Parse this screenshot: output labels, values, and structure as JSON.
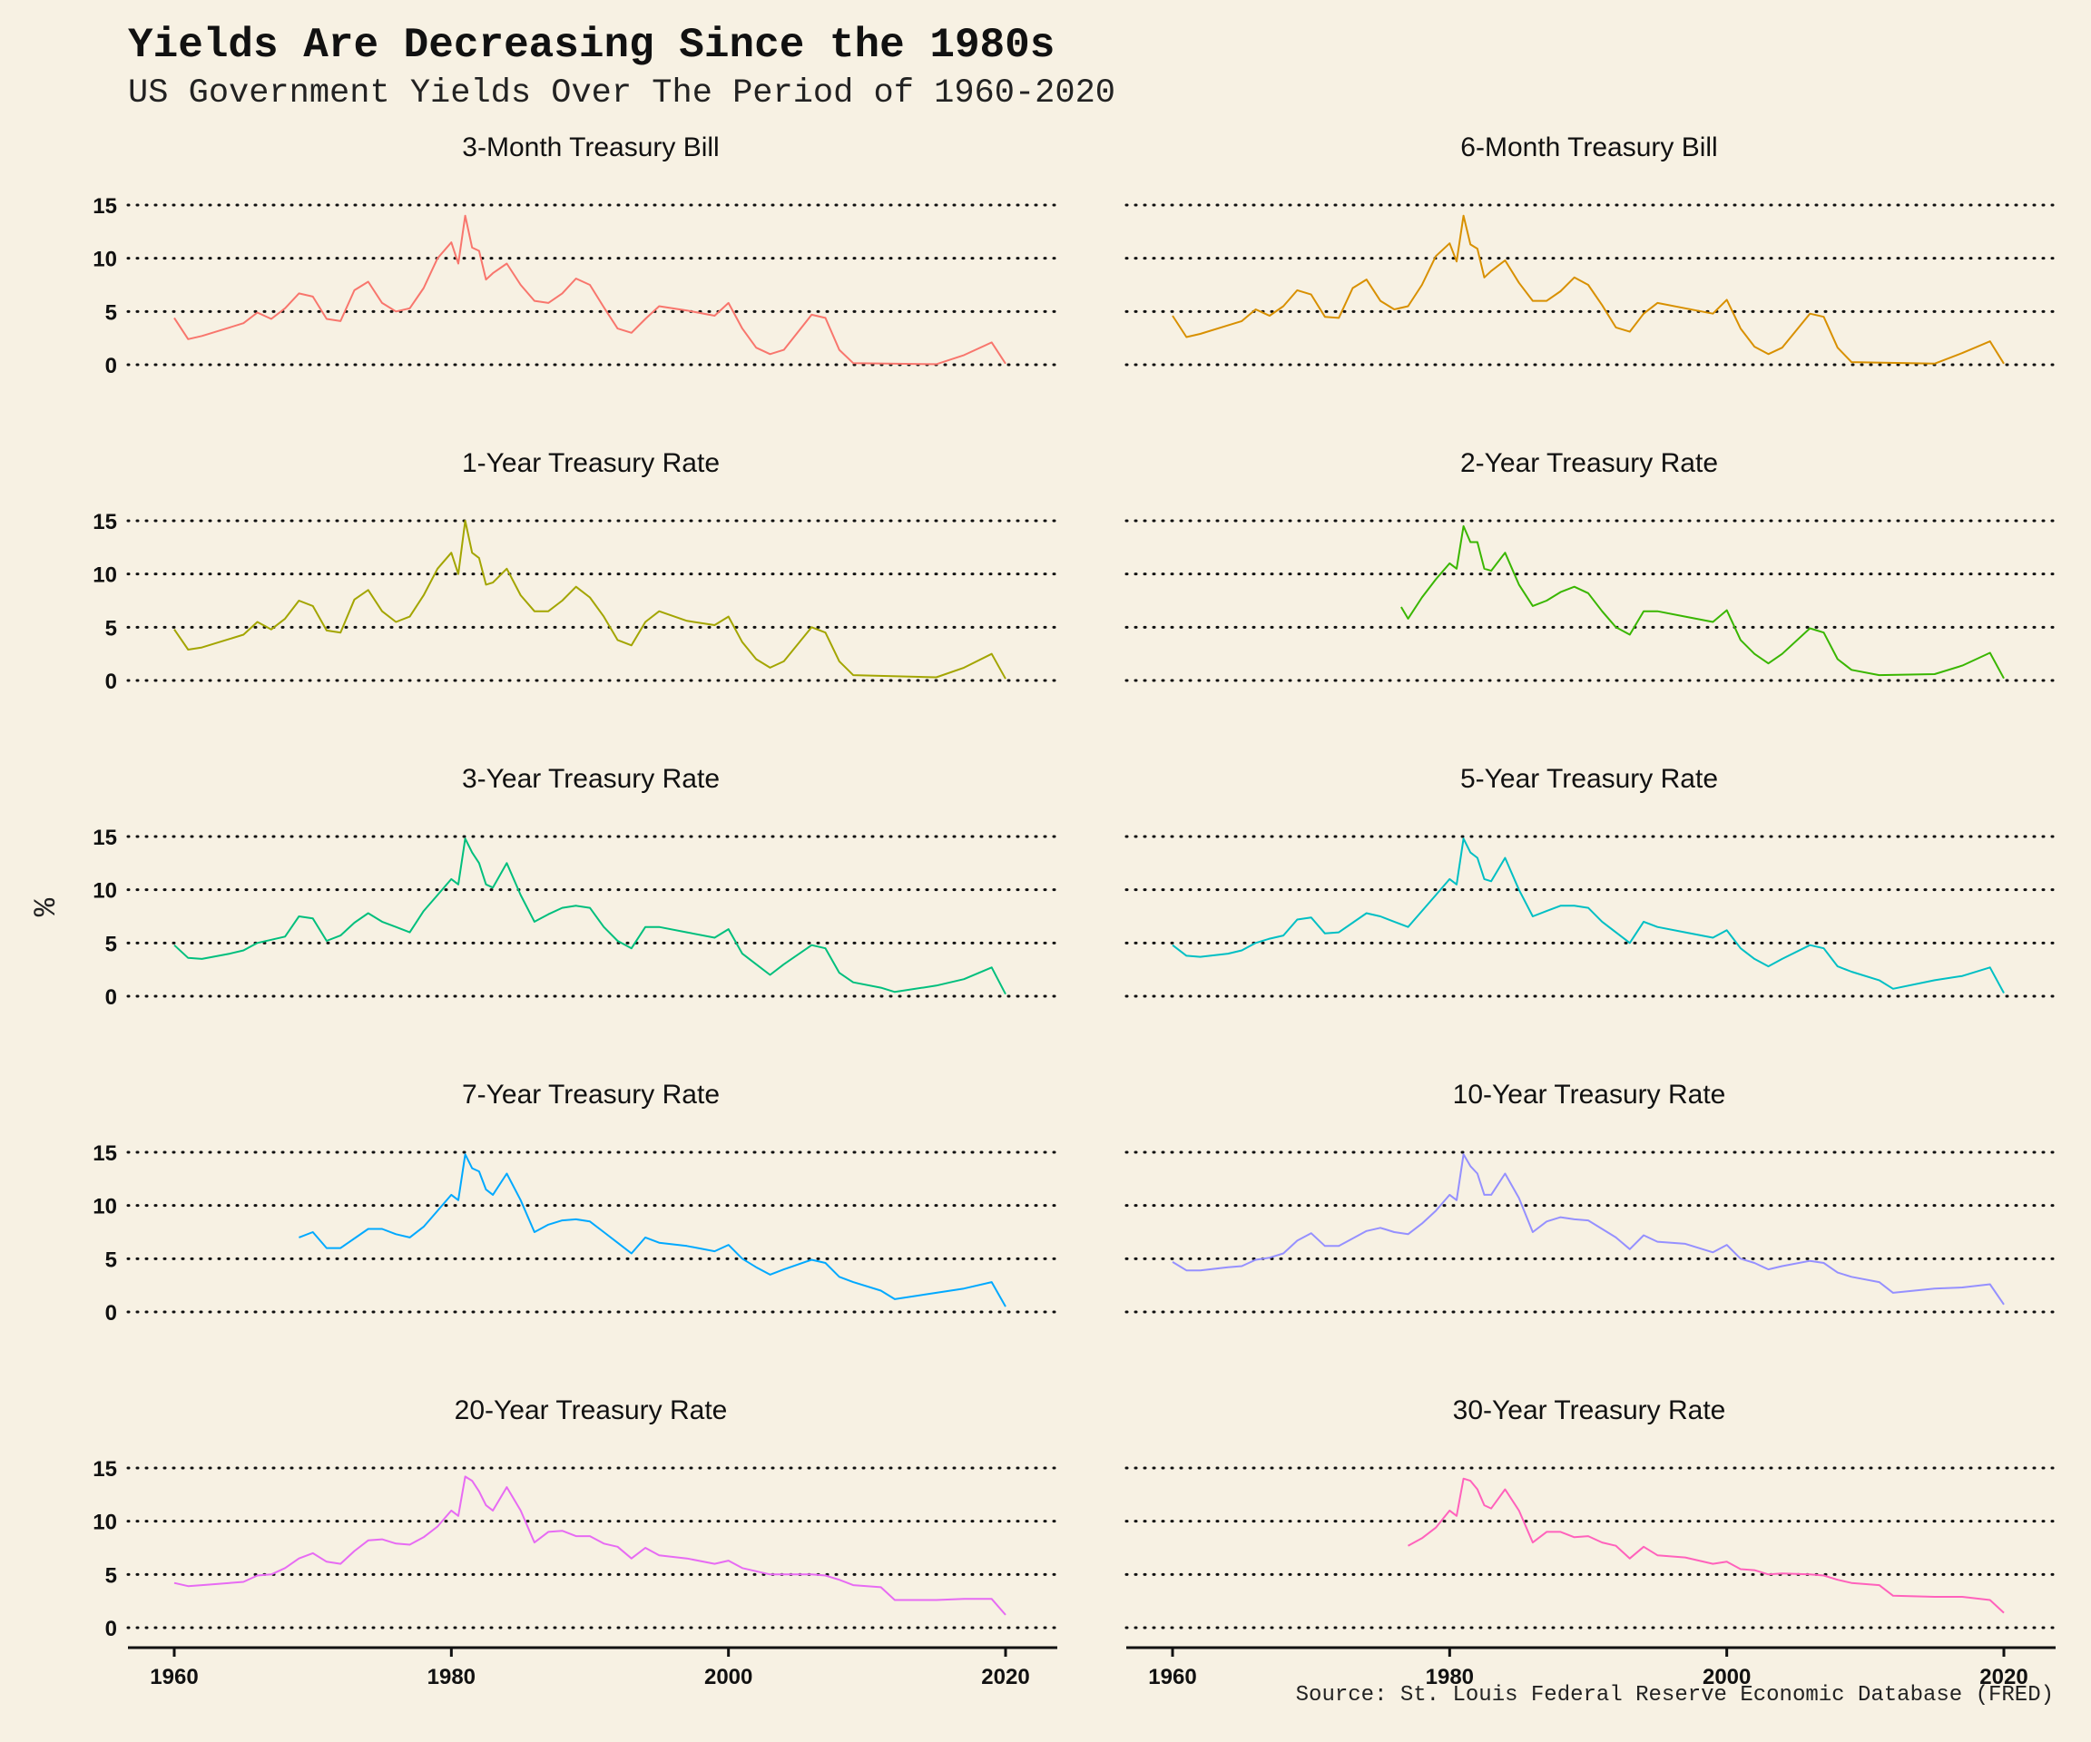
{
  "chart_data": {
    "type": "line",
    "layout": "small-multiples",
    "title": "Yields Are Decreasing Since the 1980s",
    "subtitle": "US Government Yields Over The Period of 1960-2020",
    "caption": "Source: St. Louis Federal Reserve Economic Database (FRED)",
    "ylabel": "%",
    "xlabel": "",
    "xlim": [
      1960,
      2020
    ],
    "ylim": [
      0,
      16
    ],
    "xticks": [
      1960,
      1980,
      2000,
      2020
    ],
    "yticks": [
      0,
      5,
      10,
      15
    ],
    "grid": "horizontal dotted",
    "legend": "none",
    "panels": [
      {
        "name": "3-Month Treasury Bill",
        "color": "#f8766d",
        "x": [
          1960,
          1961,
          1962,
          1964,
          1965,
          1966,
          1967,
          1968,
          1969,
          1970,
          1971,
          1972,
          1973,
          1974,
          1975,
          1976,
          1977,
          1978,
          1979,
          1980,
          1980.5,
          1981,
          1981.5,
          1982,
          1982.5,
          1983,
          1984,
          1985,
          1986,
          1987,
          1988,
          1989,
          1990,
          1991,
          1992,
          1993,
          1994,
          1995,
          1997,
          1999,
          2000,
          2001,
          2002,
          2003,
          2004,
          2006,
          2007,
          2008,
          2009,
          2015,
          2017,
          2019,
          2020
        ],
        "y": [
          4.4,
          2.4,
          2.7,
          3.5,
          3.9,
          4.9,
          4.3,
          5.3,
          6.7,
          6.4,
          4.3,
          4.1,
          7.0,
          7.8,
          5.8,
          5.0,
          5.3,
          7.2,
          10.0,
          11.5,
          9.5,
          14.0,
          11.0,
          10.7,
          8.0,
          8.6,
          9.5,
          7.5,
          6.0,
          5.8,
          6.7,
          8.1,
          7.5,
          5.4,
          3.4,
          3.0,
          4.3,
          5.5,
          5.1,
          4.6,
          5.8,
          3.4,
          1.6,
          1.0,
          1.4,
          4.7,
          4.4,
          1.4,
          0.15,
          0.05,
          0.9,
          2.1,
          0.1
        ]
      },
      {
        "name": "6-Month Treasury Bill",
        "color": "#d89000",
        "x": [
          1960,
          1961,
          1962,
          1964,
          1965,
          1966,
          1967,
          1968,
          1969,
          1970,
          1971,
          1972,
          1973,
          1974,
          1975,
          1976,
          1977,
          1978,
          1979,
          1980,
          1980.5,
          1981,
          1981.5,
          1982,
          1982.5,
          1983,
          1984,
          1985,
          1986,
          1987,
          1988,
          1989,
          1990,
          1991,
          1992,
          1993,
          1994,
          1995,
          1997,
          1999,
          2000,
          2001,
          2002,
          2003,
          2004,
          2006,
          2007,
          2008,
          2009,
          2015,
          2017,
          2019,
          2020
        ],
        "y": [
          4.6,
          2.6,
          2.9,
          3.7,
          4.1,
          5.2,
          4.6,
          5.5,
          7.0,
          6.6,
          4.5,
          4.4,
          7.2,
          8.0,
          6.0,
          5.2,
          5.5,
          7.5,
          10.2,
          11.4,
          9.7,
          14.0,
          11.3,
          10.9,
          8.2,
          8.8,
          9.8,
          7.7,
          6.0,
          6.0,
          6.9,
          8.2,
          7.5,
          5.6,
          3.5,
          3.1,
          4.8,
          5.8,
          5.3,
          4.8,
          6.1,
          3.4,
          1.7,
          1.0,
          1.6,
          4.8,
          4.5,
          1.6,
          0.25,
          0.1,
          1.1,
          2.2,
          0.1
        ]
      },
      {
        "name": "1-Year Treasury Rate",
        "color": "#a3a500",
        "x": [
          1960,
          1961,
          1962,
          1964,
          1965,
          1966,
          1967,
          1968,
          1969,
          1970,
          1971,
          1972,
          1973,
          1974,
          1975,
          1976,
          1977,
          1978,
          1979,
          1980,
          1980.5,
          1981,
          1981.5,
          1982,
          1982.5,
          1983,
          1984,
          1985,
          1986,
          1987,
          1988,
          1989,
          1990,
          1991,
          1992,
          1993,
          1994,
          1995,
          1997,
          1999,
          2000,
          2001,
          2002,
          2003,
          2004,
          2006,
          2007,
          2008,
          2009,
          2015,
          2017,
          2019,
          2020
        ],
        "y": [
          4.8,
          2.9,
          3.1,
          3.9,
          4.3,
          5.5,
          4.8,
          5.8,
          7.5,
          7.0,
          4.7,
          4.5,
          7.6,
          8.5,
          6.5,
          5.5,
          6.0,
          8.0,
          10.5,
          12.0,
          10.0,
          15.0,
          12.0,
          11.5,
          9.0,
          9.2,
          10.5,
          8.0,
          6.5,
          6.5,
          7.5,
          8.8,
          7.8,
          6.0,
          3.8,
          3.3,
          5.5,
          6.5,
          5.6,
          5.2,
          6.0,
          3.6,
          2.0,
          1.2,
          1.8,
          5.0,
          4.5,
          1.8,
          0.5,
          0.3,
          1.2,
          2.5,
          0.15
        ]
      },
      {
        "name": "2-Year Treasury Rate",
        "color": "#39b600",
        "x": [
          1976.5,
          1977,
          1978,
          1979,
          1980,
          1980.5,
          1981,
          1981.5,
          1982,
          1982.5,
          1983,
          1984,
          1985,
          1986,
          1987,
          1988,
          1989,
          1990,
          1991,
          1992,
          1993,
          1994,
          1995,
          1997,
          1999,
          2000,
          2001,
          2002,
          2003,
          2004,
          2006,
          2007,
          2008,
          2009,
          2011,
          2015,
          2017,
          2019,
          2020
        ],
        "y": [
          6.9,
          5.8,
          7.8,
          9.5,
          11.0,
          10.5,
          14.5,
          13.0,
          13.0,
          10.5,
          10.3,
          12.0,
          9.0,
          7.0,
          7.5,
          8.3,
          8.8,
          8.2,
          6.5,
          5.0,
          4.3,
          6.5,
          6.5,
          6.0,
          5.5,
          6.6,
          3.8,
          2.5,
          1.6,
          2.5,
          4.9,
          4.5,
          2.0,
          1.0,
          0.5,
          0.6,
          1.4,
          2.6,
          0.2
        ]
      },
      {
        "name": "3-Year Treasury Rate",
        "color": "#00bf7d",
        "x": [
          1960,
          1961,
          1962,
          1964,
          1965,
          1966,
          1967,
          1968,
          1969,
          1970,
          1971,
          1972,
          1973,
          1974,
          1975,
          1976,
          1977,
          1978,
          1979,
          1980,
          1980.5,
          1981,
          1981.5,
          1982,
          1982.5,
          1983,
          1984,
          1985,
          1986,
          1987,
          1988,
          1989,
          1990,
          1991,
          1992,
          1993,
          1994,
          1995,
          1997,
          1999,
          2000,
          2001,
          2002,
          2003,
          2004,
          2006,
          2007,
          2008,
          2009,
          2011,
          2012,
          2015,
          2017,
          2019,
          2020
        ],
        "y": [
          4.8,
          3.6,
          3.5,
          4.0,
          4.3,
          5.0,
          5.3,
          5.6,
          7.5,
          7.3,
          5.2,
          5.7,
          6.9,
          7.8,
          7.0,
          6.5,
          6.0,
          8.0,
          9.5,
          11.0,
          10.5,
          14.8,
          13.5,
          12.5,
          10.5,
          10.2,
          12.5,
          9.5,
          7.0,
          7.7,
          8.3,
          8.5,
          8.3,
          6.5,
          5.2,
          4.5,
          6.5,
          6.5,
          6.0,
          5.5,
          6.3,
          4.0,
          3.0,
          2.0,
          3.0,
          4.8,
          4.5,
          2.2,
          1.3,
          0.8,
          0.4,
          1.0,
          1.6,
          2.7,
          0.2
        ]
      },
      {
        "name": "5-Year Treasury Rate",
        "color": "#00bfc4",
        "x": [
          1960,
          1961,
          1962,
          1964,
          1965,
          1966,
          1967,
          1968,
          1969,
          1970,
          1971,
          1972,
          1973,
          1974,
          1975,
          1976,
          1977,
          1978,
          1979,
          1980,
          1980.5,
          1981,
          1981.5,
          1982,
          1982.5,
          1983,
          1984,
          1985,
          1986,
          1987,
          1988,
          1989,
          1990,
          1991,
          1992,
          1993,
          1994,
          1995,
          1997,
          1999,
          2000,
          2001,
          2002,
          2003,
          2004,
          2006,
          2007,
          2008,
          2009,
          2011,
          2012,
          2015,
          2017,
          2019,
          2020
        ],
        "y": [
          4.8,
          3.8,
          3.7,
          4.0,
          4.3,
          5.0,
          5.4,
          5.7,
          7.2,
          7.4,
          5.9,
          6.0,
          6.9,
          7.8,
          7.5,
          7.0,
          6.5,
          8.0,
          9.5,
          11.0,
          10.5,
          14.8,
          13.5,
          13.0,
          11.0,
          10.8,
          13.0,
          10.0,
          7.5,
          8.0,
          8.5,
          8.5,
          8.3,
          7.0,
          6.0,
          5.0,
          7.0,
          6.5,
          6.0,
          5.5,
          6.2,
          4.5,
          3.5,
          2.8,
          3.5,
          4.8,
          4.5,
          2.8,
          2.3,
          1.5,
          0.7,
          1.5,
          1.9,
          2.7,
          0.3
        ]
      },
      {
        "name": "7-Year Treasury Rate",
        "color": "#00a9ff",
        "x": [
          1969,
          1970,
          1971,
          1972,
          1973,
          1974,
          1975,
          1976,
          1977,
          1978,
          1979,
          1980,
          1980.5,
          1981,
          1981.5,
          1982,
          1982.5,
          1983,
          1984,
          1985,
          1986,
          1987,
          1988,
          1989,
          1990,
          1991,
          1992,
          1993,
          1994,
          1995,
          1997,
          1999,
          2000,
          2001,
          2002,
          2003,
          2004,
          2006,
          2007,
          2008,
          2009,
          2011,
          2012,
          2015,
          2017,
          2019,
          2020
        ],
        "y": [
          7.0,
          7.5,
          6.0,
          6.0,
          6.9,
          7.8,
          7.8,
          7.3,
          7.0,
          8.0,
          9.5,
          11.0,
          10.5,
          14.8,
          13.5,
          13.2,
          11.5,
          11.0,
          13.0,
          10.5,
          7.5,
          8.2,
          8.6,
          8.7,
          8.5,
          7.5,
          6.5,
          5.5,
          7.0,
          6.5,
          6.2,
          5.7,
          6.3,
          5.0,
          4.2,
          3.5,
          4.0,
          4.9,
          4.6,
          3.3,
          2.8,
          2.0,
          1.2,
          1.8,
          2.2,
          2.8,
          0.5
        ]
      },
      {
        "name": "10-Year Treasury Rate",
        "color": "#9590ff",
        "x": [
          1960,
          1961,
          1962,
          1964,
          1965,
          1966,
          1967,
          1968,
          1969,
          1970,
          1971,
          1972,
          1973,
          1974,
          1975,
          1976,
          1977,
          1978,
          1979,
          1980,
          1980.5,
          1981,
          1981.5,
          1982,
          1982.5,
          1983,
          1984,
          1985,
          1986,
          1987,
          1988,
          1989,
          1990,
          1991,
          1992,
          1993,
          1994,
          1995,
          1997,
          1999,
          2000,
          2001,
          2002,
          2003,
          2004,
          2006,
          2007,
          2008,
          2009,
          2011,
          2012,
          2015,
          2017,
          2019,
          2020
        ],
        "y": [
          4.7,
          3.9,
          3.9,
          4.2,
          4.3,
          4.9,
          5.1,
          5.5,
          6.7,
          7.4,
          6.2,
          6.2,
          6.9,
          7.6,
          7.9,
          7.5,
          7.3,
          8.3,
          9.5,
          11.0,
          10.5,
          14.8,
          13.7,
          13.0,
          11.0,
          11.0,
          13.0,
          10.7,
          7.5,
          8.5,
          8.9,
          8.7,
          8.6,
          7.8,
          7.0,
          5.9,
          7.2,
          6.6,
          6.4,
          5.6,
          6.3,
          5.0,
          4.6,
          4.0,
          4.3,
          4.8,
          4.6,
          3.7,
          3.3,
          2.8,
          1.8,
          2.2,
          2.3,
          2.6,
          0.7
        ]
      },
      {
        "name": "20-Year Treasury Rate",
        "color": "#e76bf3",
        "x": [
          1960,
          1961,
          1962,
          1964,
          1965,
          1966,
          1967,
          1968,
          1969,
          1970,
          1971,
          1972,
          1973,
          1974,
          1975,
          1976,
          1977,
          1978,
          1979,
          1980,
          1980.5,
          1981,
          1981.5,
          1982,
          1982.5,
          1983,
          1984,
          1985,
          1986,
          1987,
          1988,
          1989,
          1990,
          1991,
          1992,
          1993,
          1994,
          1995,
          1997,
          1999,
          2000,
          2001,
          2002,
          2003,
          2004,
          2006,
          2007,
          2008,
          2009,
          2011,
          2012,
          2015,
          2017,
          2019,
          2020
        ],
        "y": [
          4.2,
          3.9,
          4.0,
          4.2,
          4.3,
          4.9,
          5.0,
          5.6,
          6.5,
          7.0,
          6.2,
          6.0,
          7.2,
          8.2,
          8.3,
          7.9,
          7.8,
          8.5,
          9.5,
          11.0,
          10.5,
          14.2,
          13.8,
          12.8,
          11.5,
          11.0,
          13.2,
          11.0,
          8.0,
          9.0,
          9.1,
          8.6,
          8.6,
          7.9,
          7.6,
          6.5,
          7.5,
          6.8,
          6.5,
          6.0,
          6.3,
          5.6,
          5.3,
          5.0,
          5.0,
          5.0,
          4.9,
          4.5,
          4.0,
          3.8,
          2.6,
          2.6,
          2.7,
          2.7,
          1.2
        ]
      },
      {
        "name": "30-Year Treasury Rate",
        "color": "#ff62bc",
        "x": [
          1977,
          1978,
          1979,
          1980,
          1980.5,
          1981,
          1981.5,
          1982,
          1982.5,
          1983,
          1984,
          1985,
          1986,
          1987,
          1988,
          1989,
          1990,
          1991,
          1992,
          1993,
          1994,
          1995,
          1997,
          1999,
          2000,
          2001,
          2002,
          2003,
          2004,
          2006,
          2007,
          2008,
          2009,
          2011,
          2012,
          2015,
          2017,
          2019,
          2020
        ],
        "y": [
          7.7,
          8.4,
          9.4,
          11.0,
          10.5,
          14.0,
          13.8,
          13.0,
          11.5,
          11.2,
          13.0,
          11.0,
          8.0,
          9.0,
          9.0,
          8.5,
          8.6,
          8.0,
          7.7,
          6.5,
          7.6,
          6.8,
          6.6,
          6.0,
          6.2,
          5.5,
          5.4,
          5.0,
          5.1,
          5.0,
          4.9,
          4.5,
          4.2,
          4.0,
          3.0,
          2.9,
          2.9,
          2.6,
          1.4
        ]
      }
    ]
  }
}
